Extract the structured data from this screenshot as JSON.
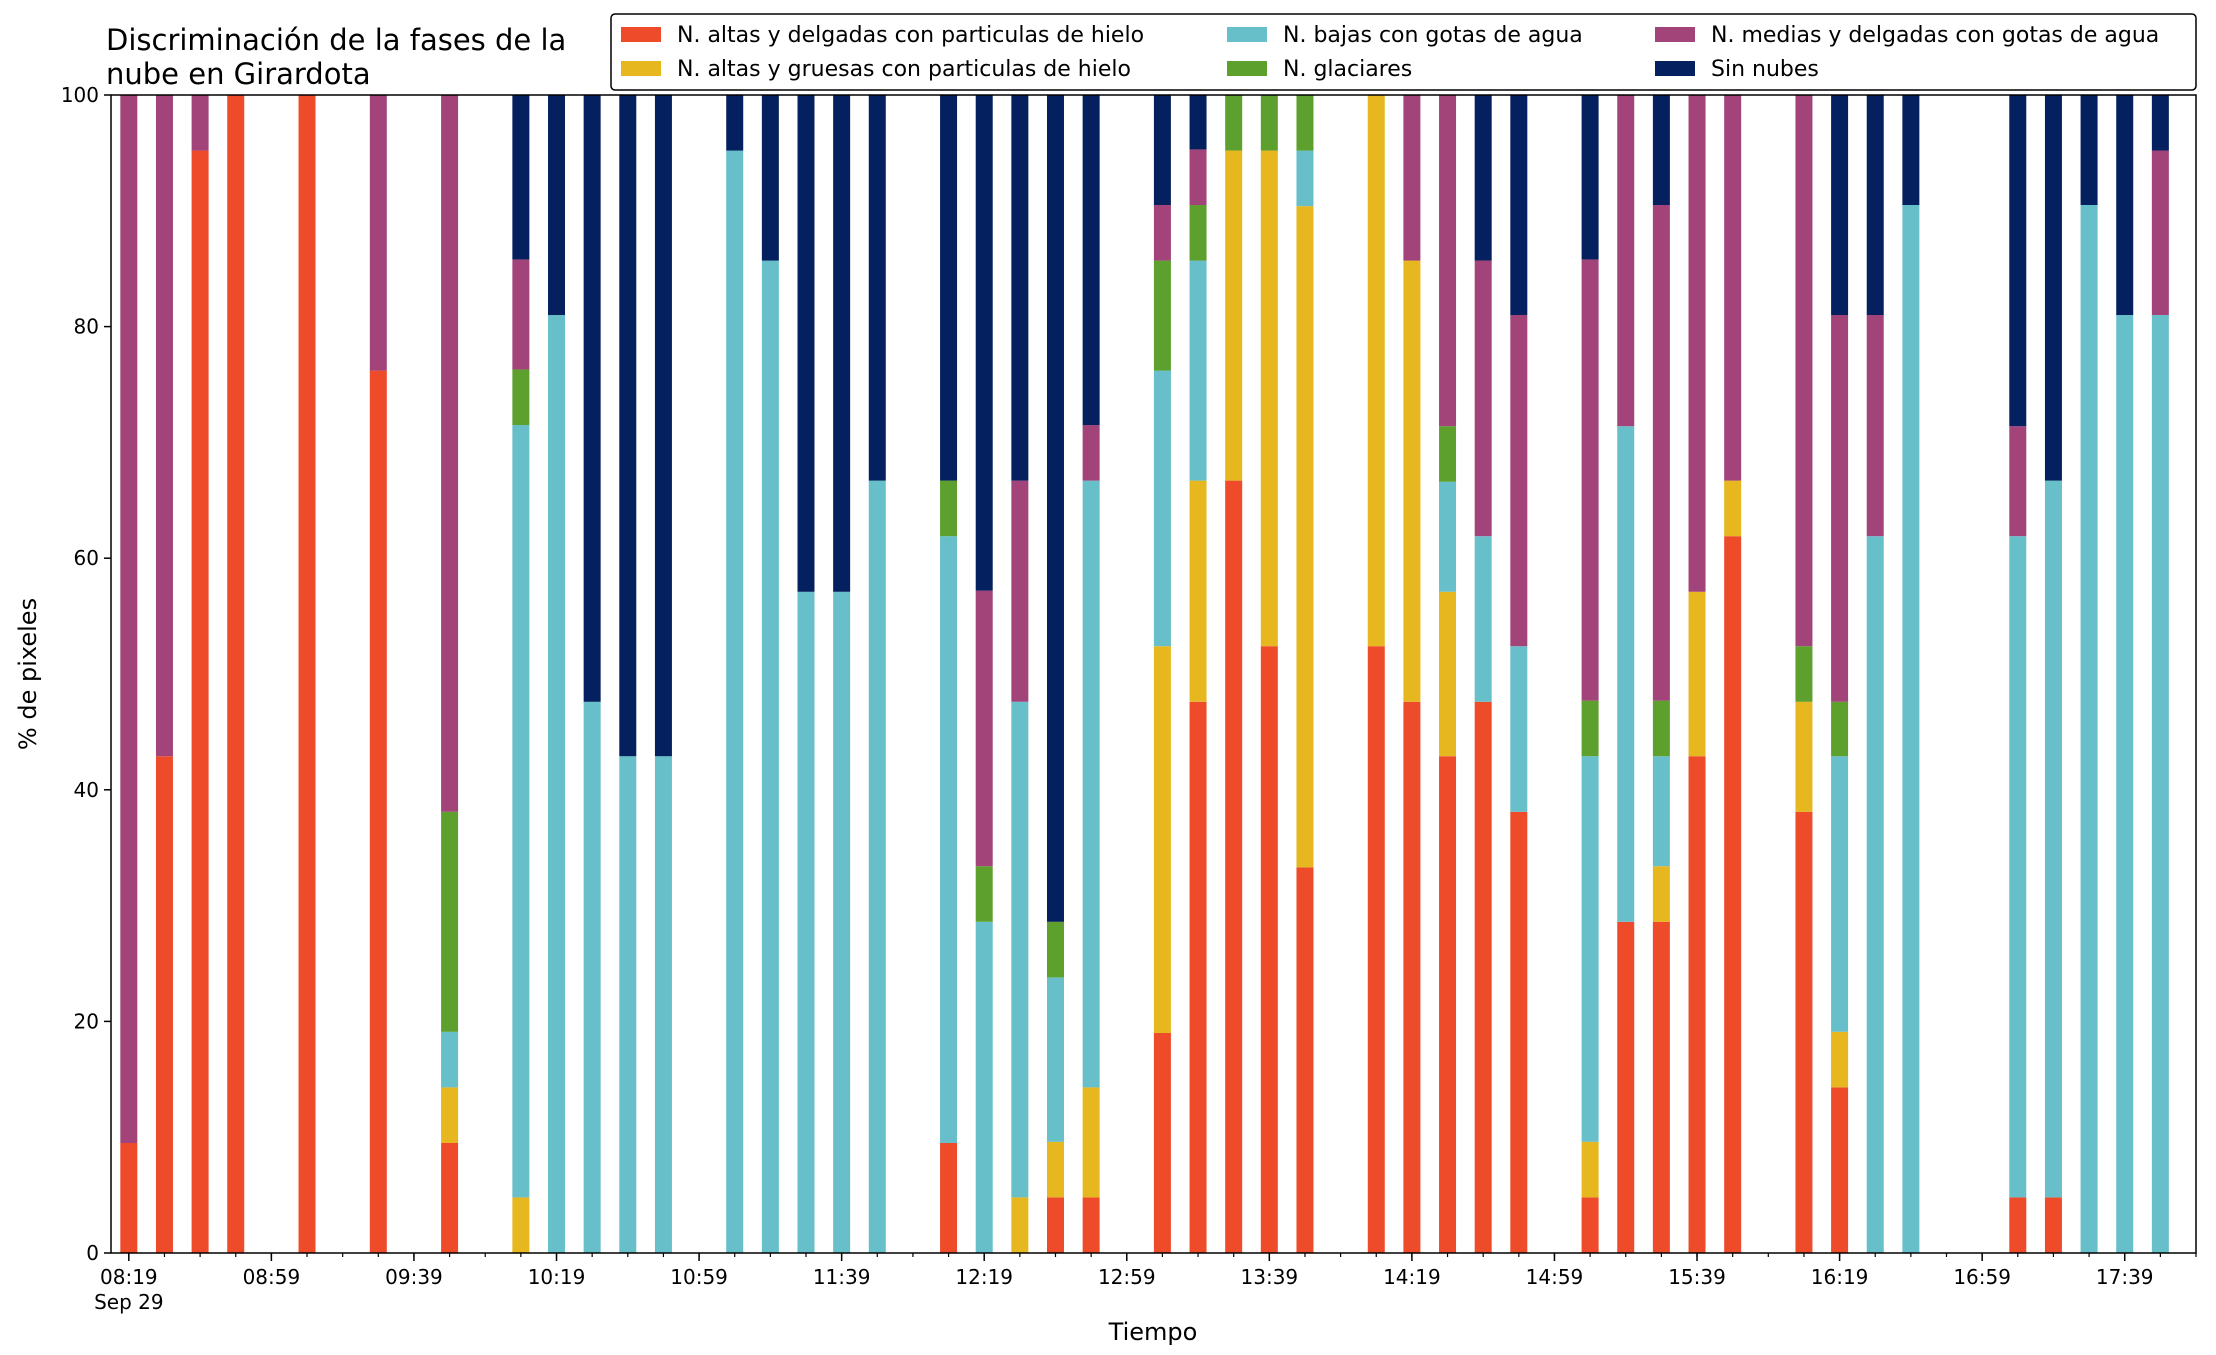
{
  "chart_data": {
    "type": "bar",
    "stacked": true,
    "title_lines": [
      "Discriminación de la fases de la",
      "nube en Girardota"
    ],
    "xlabel": "Tiempo",
    "ylabel": "% de pixeles",
    "ylim": [
      0,
      100
    ],
    "yticks": [
      "0",
      "20",
      "40",
      "60",
      "80",
      "100"
    ],
    "xlim": [
      "08:14",
      "17:59"
    ],
    "xticks": [
      {
        "time": "08:19",
        "label": "08:19",
        "sublabel": "Sep 29"
      },
      {
        "time": "08:59",
        "label": "08:59"
      },
      {
        "time": "09:39",
        "label": "09:39"
      },
      {
        "time": "10:19",
        "label": "10:19"
      },
      {
        "time": "10:59",
        "label": "10:59"
      },
      {
        "time": "11:39",
        "label": "11:39"
      },
      {
        "time": "12:19",
        "label": "12:19"
      },
      {
        "time": "12:59",
        "label": "12:59"
      },
      {
        "time": "13:39",
        "label": "13:39"
      },
      {
        "time": "14:19",
        "label": "14:19"
      },
      {
        "time": "14:59",
        "label": "14:59"
      },
      {
        "time": "15:39",
        "label": "15:39"
      },
      {
        "time": "16:19",
        "label": "16:19"
      },
      {
        "time": "16:59",
        "label": "16:59"
      },
      {
        "time": "17:39",
        "label": "17:39"
      }
    ],
    "minor_tick_interval_minutes": 10,
    "grid": false,
    "legend_position": "top",
    "series": [
      {
        "key": "ad",
        "name": "N. altas y delgadas con particulas de hielo",
        "color": "#ee4b2b"
      },
      {
        "key": "ag",
        "name": "N. altas y gruesas con particulas de hielo",
        "color": "#e6b71e"
      },
      {
        "key": "bg",
        "name": "N. bajas con gotas de agua",
        "color": "#67bfca"
      },
      {
        "key": "gl",
        "name": "N. glaciares",
        "color": "#5ea02e"
      },
      {
        "key": "md",
        "name": "N. medias y delgadas con gotas de agua",
        "color": "#a2447a"
      },
      {
        "key": "sn",
        "name": "Sin nubes",
        "color": "#04205e"
      }
    ],
    "stack_order": [
      "ad",
      "ag",
      "bg",
      "gl",
      "md",
      "sn"
    ],
    "bars": [
      {
        "time": "08:19",
        "ad": 9.5,
        "ag": 0,
        "bg": 0,
        "gl": 0,
        "md": 90.5,
        "sn": 0
      },
      {
        "time": "08:29",
        "ad": 42.9,
        "ag": 0,
        "bg": 0,
        "gl": 0,
        "md": 57.1,
        "sn": 0
      },
      {
        "time": "08:39",
        "ad": 95.2,
        "ag": 0,
        "bg": 0,
        "gl": 0,
        "md": 4.8,
        "sn": 0
      },
      {
        "time": "08:49",
        "ad": 100,
        "ag": 0,
        "bg": 0,
        "gl": 0,
        "md": 0,
        "sn": 0
      },
      {
        "time": "09:09",
        "ad": 100,
        "ag": 0,
        "bg": 0,
        "gl": 0,
        "md": 0,
        "sn": 0
      },
      {
        "time": "09:29",
        "ad": 76.2,
        "ag": 0,
        "bg": 0,
        "gl": 0,
        "md": 23.8,
        "sn": 0
      },
      {
        "time": "09:49",
        "ad": 9.5,
        "ag": 4.8,
        "bg": 4.8,
        "gl": 19.0,
        "md": 61.9,
        "sn": 0
      },
      {
        "time": "10:09",
        "ad": 0,
        "ag": 4.8,
        "bg": 66.7,
        "gl": 4.8,
        "md": 9.5,
        "sn": 14.2
      },
      {
        "time": "10:19",
        "ad": 0,
        "ag": 0,
        "bg": 81.0,
        "gl": 0,
        "md": 0,
        "sn": 19.0
      },
      {
        "time": "10:29",
        "ad": 0,
        "ag": 0,
        "bg": 47.6,
        "gl": 0,
        "md": 0,
        "sn": 52.4
      },
      {
        "time": "10:39",
        "ad": 0,
        "ag": 0,
        "bg": 42.9,
        "gl": 0,
        "md": 0,
        "sn": 57.1
      },
      {
        "time": "10:49",
        "ad": 0,
        "ag": 0,
        "bg": 42.9,
        "gl": 0,
        "md": 0,
        "sn": 57.1
      },
      {
        "time": "11:09",
        "ad": 0,
        "ag": 0,
        "bg": 95.2,
        "gl": 0,
        "md": 0,
        "sn": 4.8
      },
      {
        "time": "11:19",
        "ad": 0,
        "ag": 0,
        "bg": 85.7,
        "gl": 0,
        "md": 0,
        "sn": 14.3
      },
      {
        "time": "11:29",
        "ad": 0,
        "ag": 0,
        "bg": 57.1,
        "gl": 0,
        "md": 0,
        "sn": 42.9
      },
      {
        "time": "11:39",
        "ad": 0,
        "ag": 0,
        "bg": 57.1,
        "gl": 0,
        "md": 0,
        "sn": 42.9
      },
      {
        "time": "11:49",
        "ad": 0,
        "ag": 0,
        "bg": 66.7,
        "gl": 0,
        "md": 0,
        "sn": 33.3
      },
      {
        "time": "12:09",
        "ad": 9.5,
        "ag": 0,
        "bg": 52.4,
        "gl": 4.8,
        "md": 0,
        "sn": 33.3
      },
      {
        "time": "12:19",
        "ad": 0,
        "ag": 0,
        "bg": 28.6,
        "gl": 4.8,
        "md": 23.8,
        "sn": 42.8
      },
      {
        "time": "12:29",
        "ad": 0,
        "ag": 4.8,
        "bg": 42.8,
        "gl": 0,
        "md": 19.1,
        "sn": 33.3
      },
      {
        "time": "12:39",
        "ad": 4.8,
        "ag": 4.8,
        "bg": 14.2,
        "gl": 4.8,
        "md": 0,
        "sn": 71.4
      },
      {
        "time": "12:49",
        "ad": 4.8,
        "ag": 9.5,
        "bg": 52.4,
        "gl": 0,
        "md": 4.8,
        "sn": 28.5
      },
      {
        "time": "13:09",
        "ad": 19.0,
        "ag": 33.4,
        "bg": 23.8,
        "gl": 9.5,
        "md": 4.8,
        "sn": 9.5
      },
      {
        "time": "13:19",
        "ad": 47.6,
        "ag": 19.1,
        "bg": 19.0,
        "gl": 4.8,
        "md": 4.8,
        "sn": 4.7
      },
      {
        "time": "13:29",
        "ad": 66.7,
        "ag": 28.5,
        "bg": 0,
        "gl": 4.8,
        "md": 0,
        "sn": 0
      },
      {
        "time": "13:39",
        "ad": 52.4,
        "ag": 42.8,
        "bg": 0,
        "gl": 4.8,
        "md": 0,
        "sn": 0
      },
      {
        "time": "13:49",
        "ad": 33.3,
        "ag": 57.1,
        "bg": 4.8,
        "gl": 4.8,
        "md": 0,
        "sn": 0
      },
      {
        "time": "14:09",
        "ad": 52.4,
        "ag": 47.6,
        "bg": 0,
        "gl": 0,
        "md": 0,
        "sn": 0
      },
      {
        "time": "14:19",
        "ad": 47.6,
        "ag": 38.1,
        "bg": 0,
        "gl": 0,
        "md": 14.3,
        "sn": 0
      },
      {
        "time": "14:29",
        "ad": 42.9,
        "ag": 14.2,
        "bg": 9.5,
        "gl": 4.8,
        "md": 28.6,
        "sn": 0
      },
      {
        "time": "14:39",
        "ad": 47.6,
        "ag": 0,
        "bg": 14.3,
        "gl": 0,
        "md": 23.8,
        "sn": 14.3
      },
      {
        "time": "14:49",
        "ad": 38.1,
        "ag": 0,
        "bg": 14.3,
        "gl": 0,
        "md": 28.6,
        "sn": 19.0
      },
      {
        "time": "15:09",
        "ad": 4.8,
        "ag": 4.8,
        "bg": 33.3,
        "gl": 4.8,
        "md": 38.1,
        "sn": 14.2
      },
      {
        "time": "15:19",
        "ad": 28.6,
        "ag": 0,
        "bg": 42.8,
        "gl": 0,
        "md": 28.6,
        "sn": 0
      },
      {
        "time": "15:29",
        "ad": 28.6,
        "ag": 4.8,
        "bg": 9.5,
        "gl": 4.8,
        "md": 42.8,
        "sn": 9.5
      },
      {
        "time": "15:39",
        "ad": 42.9,
        "ag": 14.2,
        "bg": 0,
        "gl": 0,
        "md": 42.9,
        "sn": 0
      },
      {
        "time": "15:49",
        "ad": 61.9,
        "ag": 4.8,
        "bg": 0,
        "gl": 0,
        "md": 33.3,
        "sn": 0
      },
      {
        "time": "16:09",
        "ad": 38.1,
        "ag": 9.5,
        "bg": 0,
        "gl": 4.8,
        "md": 47.6,
        "sn": 0
      },
      {
        "time": "16:19",
        "ad": 14.3,
        "ag": 4.8,
        "bg": 23.8,
        "gl": 4.7,
        "md": 33.4,
        "sn": 19.0
      },
      {
        "time": "16:29",
        "ad": 0,
        "ag": 0,
        "bg": 61.9,
        "gl": 0,
        "md": 19.1,
        "sn": 19.0
      },
      {
        "time": "16:39",
        "ad": 0,
        "ag": 0,
        "bg": 90.5,
        "gl": 0,
        "md": 0,
        "sn": 9.5
      },
      {
        "time": "17:09",
        "ad": 4.8,
        "ag": 0,
        "bg": 57.1,
        "gl": 0,
        "md": 9.5,
        "sn": 28.6
      },
      {
        "time": "17:19",
        "ad": 4.8,
        "ag": 0,
        "bg": 61.9,
        "gl": 0,
        "md": 0,
        "sn": 33.3
      },
      {
        "time": "17:29",
        "ad": 0,
        "ag": 0,
        "bg": 90.5,
        "gl": 0,
        "md": 0,
        "sn": 9.5
      },
      {
        "time": "17:39",
        "ad": 0,
        "ag": 0,
        "bg": 81.0,
        "gl": 0,
        "md": 0,
        "sn": 19.0
      },
      {
        "time": "17:49",
        "ad": 0,
        "ag": 0,
        "bg": 81.0,
        "gl": 0,
        "md": 14.2,
        "sn": 4.8
      }
    ]
  }
}
